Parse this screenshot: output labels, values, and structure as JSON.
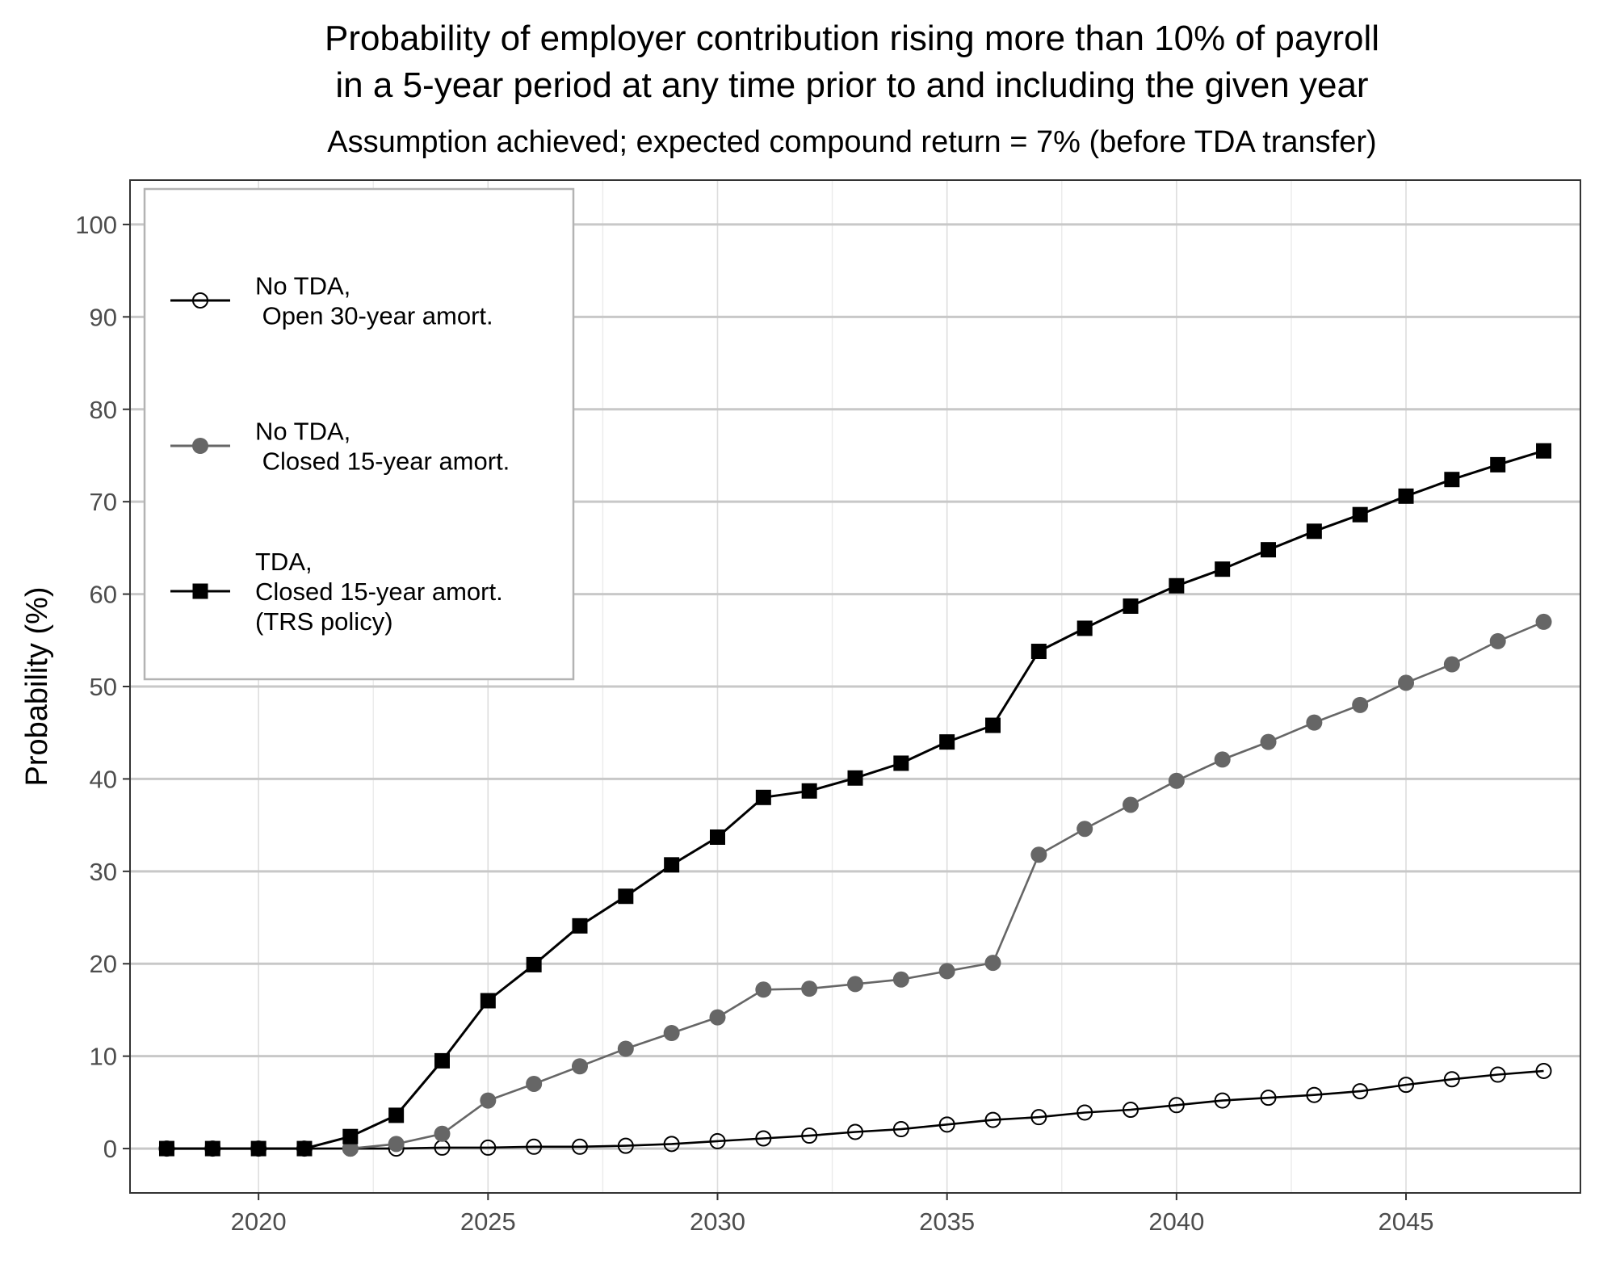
{
  "chart_data": {
    "type": "line",
    "title": "Probability of employer contribution rising more than 10% of payroll\nin a 5-year period at any time prior to and including the given year",
    "subtitle": "Assumption achieved; expected compound return = 7% (before TDA transfer)",
    "xlabel": "",
    "ylabel": "Probability (%)",
    "xlim": [
      2017.2,
      2048.8
    ],
    "ylim": [
      -4.8,
      104.8
    ],
    "xticks": [
      2020,
      2025,
      2030,
      2035,
      2040,
      2045
    ],
    "yticks": [
      0,
      10,
      20,
      30,
      40,
      50,
      60,
      70,
      80,
      90,
      100
    ],
    "grid": true,
    "legend_position": "top-left",
    "x": [
      2018,
      2019,
      2020,
      2021,
      2022,
      2023,
      2024,
      2025,
      2026,
      2027,
      2028,
      2029,
      2030,
      2031,
      2032,
      2033,
      2034,
      2035,
      2036,
      2037,
      2038,
      2039,
      2040,
      2041,
      2042,
      2043,
      2044,
      2045,
      2046,
      2047,
      2048
    ],
    "series": [
      {
        "name": "No TDA,\n Open 30-year amort.",
        "color": "#000000",
        "marker": "open-circle",
        "values": [
          0,
          0,
          0,
          0,
          0,
          0,
          0.1,
          0.1,
          0.2,
          0.2,
          0.3,
          0.5,
          0.8,
          1.1,
          1.4,
          1.8,
          2.1,
          2.6,
          3.1,
          3.4,
          3.9,
          4.2,
          4.7,
          5.2,
          5.5,
          5.8,
          6.2,
          6.9,
          7.5,
          8.0,
          8.4
        ]
      },
      {
        "name": "No TDA,\n Closed 15-year amort.",
        "color": "#666666",
        "marker": "filled-circle",
        "values": [
          null,
          null,
          null,
          null,
          0,
          0.5,
          1.6,
          5.2,
          7.0,
          8.9,
          10.8,
          12.5,
          14.2,
          17.2,
          17.3,
          17.8,
          18.3,
          19.2,
          20.1,
          31.8,
          34.6,
          37.2,
          39.8,
          42.1,
          44.0,
          46.1,
          48.0,
          50.4,
          52.4,
          54.9,
          57.0
        ]
      },
      {
        "name": "TDA,\nClosed 15-year amort.\n(TRS policy)",
        "color": "#000000",
        "marker": "filled-square",
        "values": [
          0,
          0,
          0,
          0,
          1.3,
          3.6,
          9.5,
          16.0,
          19.9,
          24.1,
          27.3,
          30.7,
          33.7,
          38.0,
          38.7,
          40.1,
          41.7,
          44.0,
          45.8,
          53.8,
          56.3,
          58.7,
          60.9,
          62.7,
          64.8,
          66.8,
          68.6,
          70.6,
          72.4,
          74.0,
          75.5
        ]
      }
    ]
  }
}
